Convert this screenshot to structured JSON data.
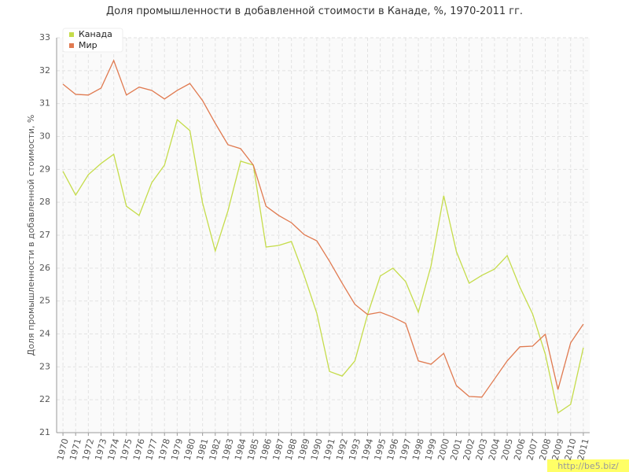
{
  "chart_data": {
    "type": "line",
    "title": "Доля промышленности в добавленной стоимости в Канаде, %, 1970-2011 гг.",
    "y_label": "Доля промышленности в добавленной стоимости, %",
    "watermark": "http://be5.biz/",
    "categories": [
      "1970",
      "1971",
      "1972",
      "1973",
      "1974",
      "1975",
      "1976",
      "1977",
      "1978",
      "1979",
      "1980",
      "1981",
      "1982",
      "1983",
      "1984",
      "1985",
      "1986",
      "1987",
      "1988",
      "1989",
      "1990",
      "1991",
      "1992",
      "1993",
      "1994",
      "1995",
      "1996",
      "1997",
      "1998",
      "1999",
      "2000",
      "2001",
      "2002",
      "2003",
      "2004",
      "2005",
      "2006",
      "2007",
      "2008",
      "2009",
      "2010",
      "2011"
    ],
    "series": [
      {
        "name": "Канада",
        "color": "#c5dc4a",
        "values": [
          28.94,
          28.22,
          28.84,
          29.18,
          29.46,
          27.88,
          27.6,
          28.6,
          29.13,
          30.51,
          30.18,
          27.98,
          26.52,
          27.74,
          29.25,
          29.13,
          26.64,
          26.69,
          26.81,
          25.78,
          24.63,
          22.86,
          22.72,
          23.18,
          24.59,
          25.76,
          26.0,
          25.59,
          24.66,
          26.07,
          28.2,
          26.5,
          25.54,
          25.78,
          25.97,
          26.38,
          25.42,
          24.61,
          23.39,
          21.6,
          21.86,
          23.58
        ]
      },
      {
        "name": "Мир",
        "color": "#e07a50",
        "values": [
          31.59,
          31.28,
          31.26,
          31.47,
          32.31,
          31.26,
          31.5,
          31.4,
          31.14,
          31.4,
          31.61,
          31.09,
          30.4,
          29.75,
          29.63,
          29.13,
          27.88,
          27.6,
          27.38,
          27.02,
          26.83,
          26.21,
          25.54,
          24.9,
          24.59,
          24.66,
          24.51,
          24.32,
          23.18,
          23.08,
          23.41,
          22.43,
          22.1,
          22.08,
          22.63,
          23.18,
          23.61,
          23.63,
          23.99,
          22.31,
          23.73,
          24.3
        ]
      }
    ],
    "ylim": [
      21,
      33
    ],
    "yticks": [
      21,
      22,
      23,
      24,
      25,
      26,
      27,
      28,
      29,
      30,
      31,
      32,
      33
    ],
    "grid": true,
    "legend": "top-left"
  }
}
